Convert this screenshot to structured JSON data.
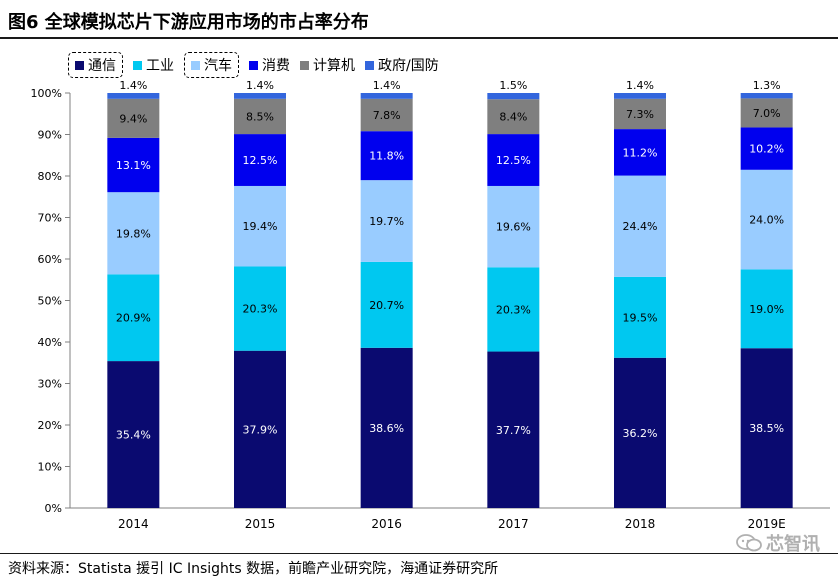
{
  "header": {
    "title": "图6  全球模拟芯片下游应用市场的市占率分布"
  },
  "source": "资料来源：Statista 援引 IC Insights 数据，前瞻产业研究院，海通证券研究所",
  "watermark": "芯智讯",
  "colors": {
    "通信": "#0a0a70",
    "工业": "#00c8f0",
    "汽车": "#99ccff",
    "消费": "#0000ee",
    "计算机": "#7f7f7f",
    "政府/国防": "#3366dd"
  },
  "chart_data": {
    "type": "bar",
    "stacked": true,
    "categories": [
      "2014",
      "2015",
      "2016",
      "2017",
      "2018",
      "2019E"
    ],
    "ylim": [
      0,
      100
    ],
    "yticks": [
      "0%",
      "10%",
      "20%",
      "30%",
      "40%",
      "50%",
      "60%",
      "70%",
      "80%",
      "90%",
      "100%"
    ],
    "legend_position": "top-left",
    "highlighted_legend_entries": [
      "通信",
      "汽车"
    ],
    "series": [
      {
        "name": "通信",
        "values": [
          35.4,
          37.9,
          38.6,
          37.7,
          36.2,
          38.5
        ],
        "labels": [
          "35.4%",
          "37.9%",
          "38.6%",
          "37.7%",
          "36.2%",
          "38.5%"
        ]
      },
      {
        "name": "工业",
        "values": [
          20.9,
          20.3,
          20.7,
          20.3,
          19.5,
          19.0
        ],
        "labels": [
          "20.9%",
          "20.3%",
          "20.7%",
          "20.3%",
          "19.5%",
          "19.0%"
        ]
      },
      {
        "name": "汽车",
        "values": [
          19.8,
          19.4,
          19.7,
          19.6,
          24.4,
          24.0
        ],
        "labels": [
          "19.8%",
          "19.4%",
          "19.7%",
          "19.6%",
          "24.4%",
          "24.0%"
        ]
      },
      {
        "name": "消费",
        "values": [
          13.1,
          12.5,
          11.8,
          12.5,
          11.2,
          10.2
        ],
        "labels": [
          "13.1%",
          "12.5%",
          "11.8%",
          "12.5%",
          "11.2%",
          "10.2%"
        ]
      },
      {
        "name": "计算机",
        "values": [
          9.4,
          8.5,
          7.8,
          8.4,
          7.3,
          7.0
        ],
        "labels": [
          "9.4%",
          "8.5%",
          "7.8%",
          "8.4%",
          "7.3%",
          "7.0%"
        ]
      },
      {
        "name": "政府/国防",
        "values": [
          1.4,
          1.4,
          1.4,
          1.5,
          1.4,
          1.3
        ],
        "labels": [
          "1.4%",
          "1.4%",
          "1.4%",
          "1.5%",
          "1.4%",
          "1.3%"
        ]
      }
    ]
  }
}
